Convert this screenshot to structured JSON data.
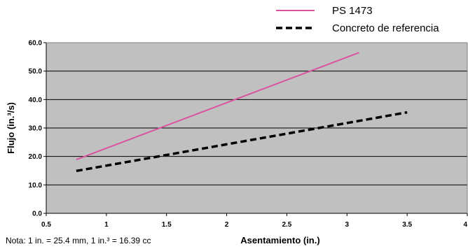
{
  "chart_data": {
    "type": "line",
    "xlabel": "Asentamiento (in.)",
    "ylabel": "Flujo (in.³/s)",
    "xlim": [
      0.5,
      4
    ],
    "ylim": [
      0,
      60
    ],
    "x_ticks": [
      0.5,
      1,
      1.5,
      2,
      2.5,
      3,
      3.5,
      4
    ],
    "x_tick_labels": [
      "0.5",
      "1",
      "1.5",
      "2",
      "2.5",
      "3",
      "3.5",
      "4"
    ],
    "y_ticks": [
      0,
      10,
      20,
      30,
      40,
      50,
      60
    ],
    "y_tick_labels": [
      "0.0",
      "10.0",
      "20.0",
      "30.0",
      "40.0",
      "50.0",
      "60.0"
    ],
    "grid": "horizontal",
    "legend_position": "top-right",
    "plot_background": "#c0c0c0",
    "series": [
      {
        "name": "PS 1473",
        "color": "#d9539e",
        "style": "solid",
        "x": [
          0.75,
          3.1
        ],
        "y": [
          18.9,
          56.5
        ]
      },
      {
        "name": "Concreto de referencia",
        "color": "#000000",
        "style": "dashed",
        "x": [
          0.75,
          3.5
        ],
        "y": [
          14.9,
          35.5
        ]
      }
    ],
    "note": "Nota:  1 in. = 25.4 mm, 1 in.³ = 16.39 cc"
  }
}
